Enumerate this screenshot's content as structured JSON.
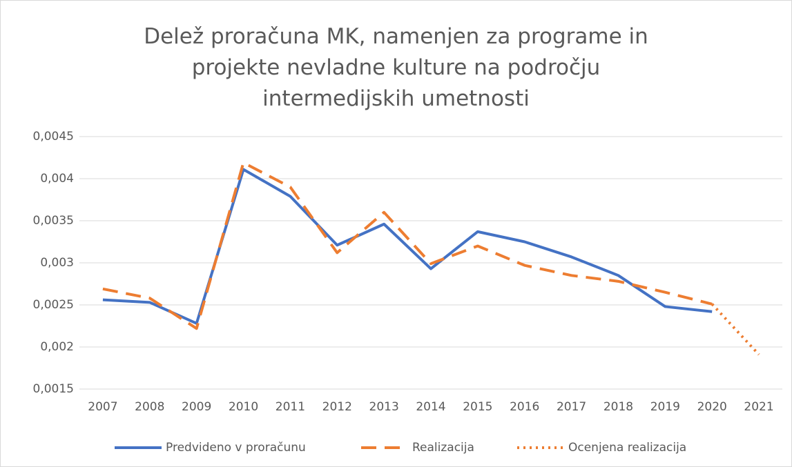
{
  "chart_data": {
    "type": "line",
    "title": "Delež proračuna MK, namenjen za programe in projekte nevladne kulture na področju intermedijskih umetnosti",
    "categories": [
      "2007",
      "2008",
      "2009",
      "2010",
      "2011",
      "2012",
      "2013",
      "2014",
      "2015",
      "2016",
      "2017",
      "2018",
      "2019",
      "2020",
      "2021"
    ],
    "series": [
      {
        "name": "Predvideno v proračunu",
        "color": "#4472c4",
        "style": "solid",
        "values": [
          0.00256,
          0.00253,
          0.00228,
          0.00411,
          0.00379,
          0.00321,
          0.00346,
          0.00293,
          0.00337,
          0.00325,
          0.00307,
          0.00285,
          0.00248,
          0.00242,
          null
        ]
      },
      {
        "name": "Realizacija",
        "color": "#ed7d31",
        "style": "dashed",
        "values": [
          0.00269,
          0.00258,
          0.00222,
          0.00419,
          0.0039,
          0.00312,
          0.0036,
          0.00299,
          0.0032,
          0.00297,
          0.00285,
          0.00278,
          0.00265,
          0.00251,
          null
        ]
      },
      {
        "name": "Ocenjena realizacija",
        "color": "#ed7d31",
        "style": "dotted",
        "values": [
          null,
          null,
          null,
          null,
          null,
          null,
          null,
          null,
          null,
          null,
          null,
          null,
          null,
          0.00251,
          0.00191
        ]
      }
    ],
    "ylim": [
      0.0015,
      0.0045
    ],
    "yticks": [
      {
        "value": 0.0015,
        "label": "0,0015"
      },
      {
        "value": 0.002,
        "label": "0,002"
      },
      {
        "value": 0.0025,
        "label": "0,0025"
      },
      {
        "value": 0.003,
        "label": "0,003"
      },
      {
        "value": 0.0035,
        "label": "0,0035"
      },
      {
        "value": 0.004,
        "label": "0,004"
      },
      {
        "value": 0.0045,
        "label": "0,0045"
      }
    ],
    "grid": true,
    "legend": "bottom"
  }
}
